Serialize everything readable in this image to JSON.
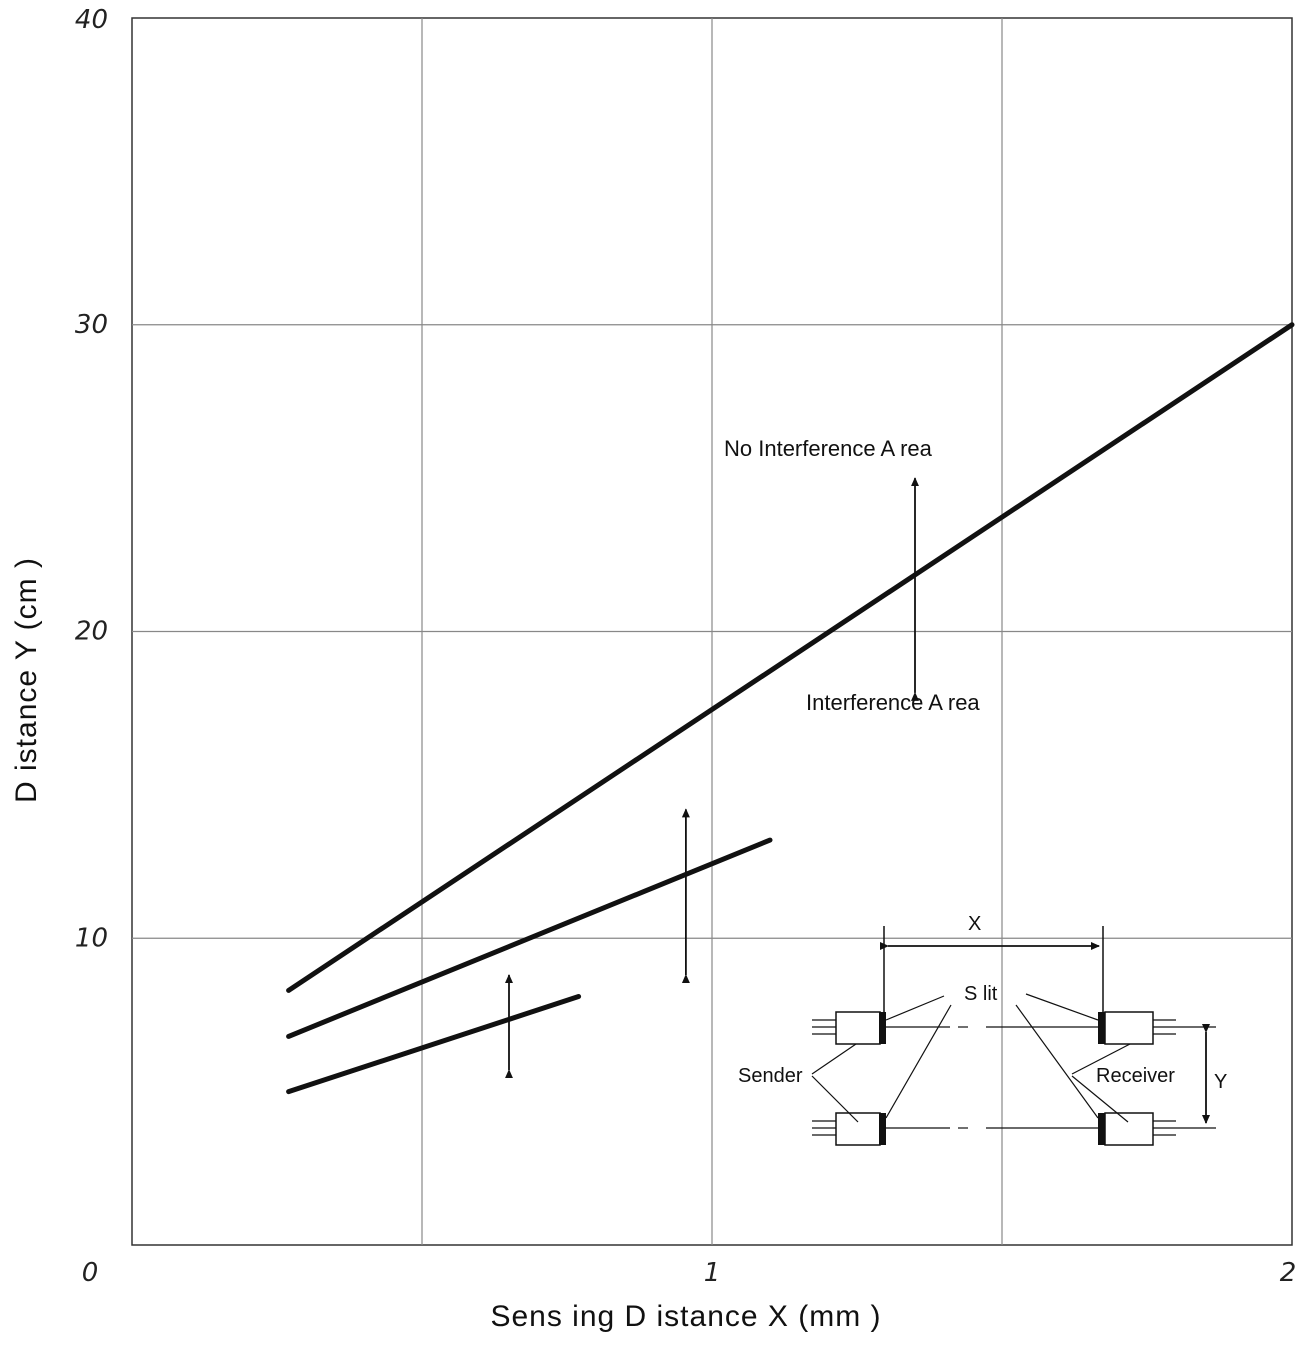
{
  "chart_data": {
    "type": "line",
    "xlabel": "Sens ing D istance X (mm )",
    "ylabel": "D istance Y (cm )",
    "xlim": [
      0,
      2
    ],
    "ylim": [
      0,
      40
    ],
    "x_gridlines": [
      0.5,
      1,
      1.5
    ],
    "y_gridlines": [
      10,
      20,
      30
    ],
    "grid": true,
    "x_ticks": [
      {
        "value": 0,
        "label": "0"
      },
      {
        "value": 1,
        "label": "1"
      },
      {
        "value": 2,
        "label": "2"
      }
    ],
    "y_ticks": [
      {
        "value": 10,
        "label": "10"
      },
      {
        "value": 20,
        "label": "20"
      },
      {
        "value": 30,
        "label": "30"
      },
      {
        "value": 40,
        "label": "40"
      }
    ],
    "series": [
      {
        "x": [
          0.27,
          2.0
        ],
        "y": [
          8.3,
          30.0
        ]
      },
      {
        "x": [
          0.27,
          1.1
        ],
        "y": [
          6.8,
          13.2
        ]
      },
      {
        "x": [
          0.27,
          0.77
        ],
        "y": [
          5.0,
          8.1
        ]
      }
    ],
    "arrows": [
      {
        "x": 1.35,
        "y_from": 18.0,
        "y_to": 25.0
      },
      {
        "x": 0.955,
        "y_from": 8.8,
        "y_to": 14.2
      },
      {
        "x": 0.65,
        "y_from": 5.7,
        "y_to": 8.8
      }
    ],
    "annotations": {
      "upper": "No Interference A rea",
      "lower": "Interference A rea"
    },
    "inset": {
      "x_label": "X",
      "y_label": "Y",
      "slit_label": "S lit",
      "sender_label": "Sender",
      "receiver_label": "Receiver"
    }
  }
}
